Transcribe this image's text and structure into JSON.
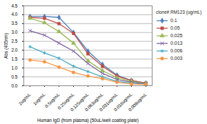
{
  "chart_data": {
    "type": "line",
    "x_label": "Human IgD (from plasma) (50uL/well coating plate)",
    "y_label": "Abs (405nm)",
    "legend_title": "clone# RM123 (ug/mL)",
    "legend": "right",
    "grid": true,
    "categories": [
      "2ug/mL",
      "1ug/mL",
      "0.5ug/mL",
      "0.25ug/mL",
      "0.125ug/mL",
      "0.063ug/mL",
      "0.031ug/mL",
      "0.016ug/mL",
      "0.008ug/mL"
    ],
    "ylim": [
      0,
      4.5
    ],
    "yticks": [
      0,
      0.5,
      1,
      1.5,
      2,
      2.5,
      3,
      3.5,
      4,
      4.5
    ],
    "series": [
      {
        "name": "0.1",
        "color": "#4a7ebb",
        "marker": "diamond",
        "values": [
          3.9,
          3.9,
          3.85,
          3.0,
          1.95,
          1.2,
          0.6,
          0.3,
          0.15
        ]
      },
      {
        "name": "0.05",
        "color": "#be4b48",
        "marker": "square",
        "values": [
          3.85,
          3.8,
          3.5,
          2.95,
          1.8,
          1.1,
          0.55,
          0.3,
          0.15
        ]
      },
      {
        "name": "0.025",
        "color": "#98b954",
        "marker": "triangle",
        "values": [
          3.8,
          3.55,
          3.05,
          2.4,
          1.4,
          0.85,
          0.45,
          0.25,
          0.12
        ]
      },
      {
        "name": "0.013",
        "color": "#7d60a0",
        "marker": "times",
        "values": [
          3.1,
          2.85,
          2.4,
          1.95,
          1.25,
          0.7,
          0.35,
          0.2,
          0.1
        ]
      },
      {
        "name": "0.006",
        "color": "#46aac5",
        "marker": "asterisk",
        "values": [
          2.2,
          1.85,
          1.55,
          1.1,
          0.8,
          0.5,
          0.25,
          0.15,
          0.08
        ]
      },
      {
        "name": "0.003",
        "color": "#f79646",
        "marker": "circle",
        "values": [
          1.45,
          1.35,
          1.05,
          0.75,
          0.55,
          0.4,
          0.2,
          0.1,
          0.07
        ]
      }
    ]
  }
}
